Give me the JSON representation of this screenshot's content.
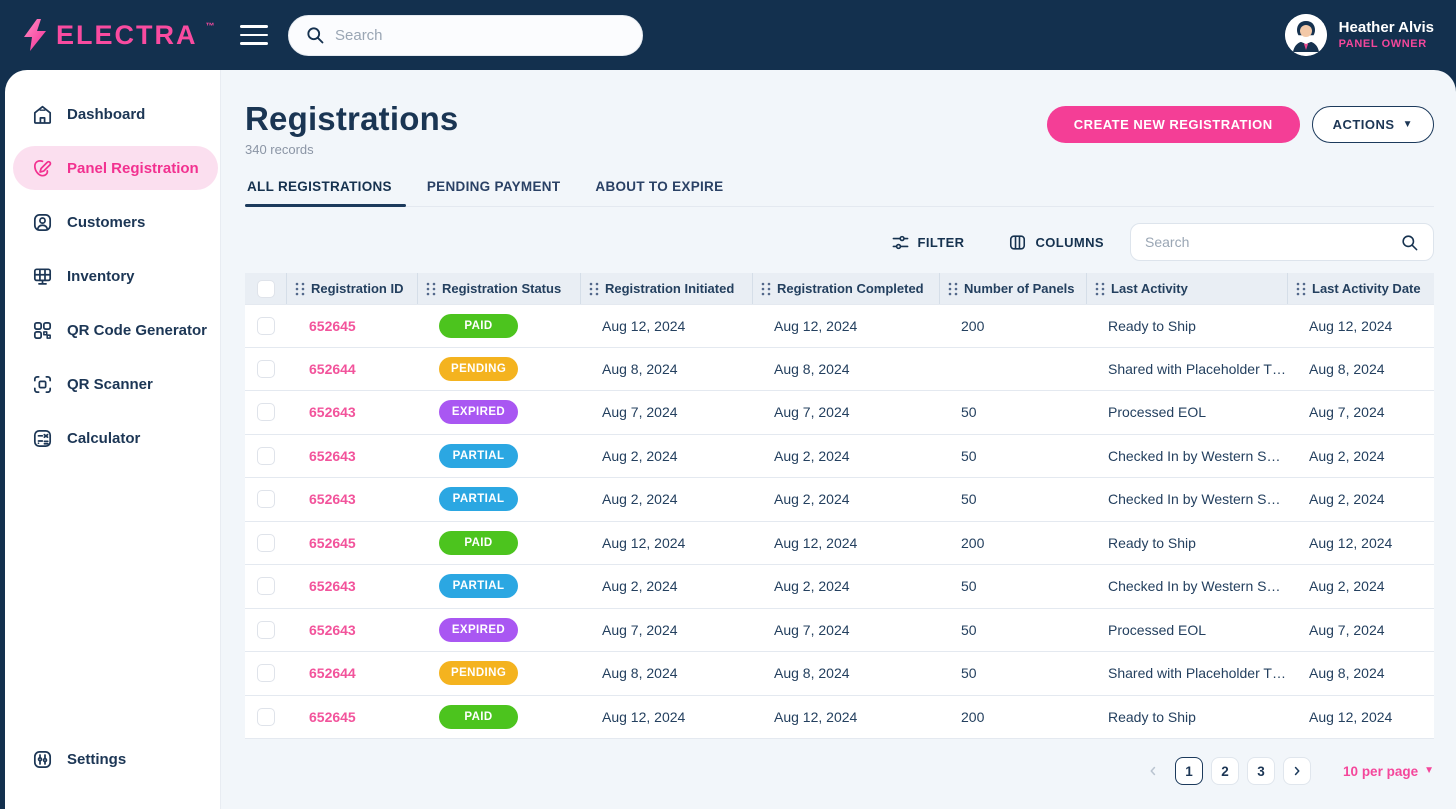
{
  "brand": {
    "name": "ELECTRA",
    "trademark": "™"
  },
  "topbar": {
    "search_placeholder": "Search",
    "user_name": "Heather Alvis",
    "user_role": "PANEL OWNER"
  },
  "sidebar": {
    "items": [
      {
        "label": "Dashboard",
        "icon": "home",
        "active": false
      },
      {
        "label": "Panel Registration",
        "icon": "edit",
        "active": true
      },
      {
        "label": "Customers",
        "icon": "customer",
        "active": false
      },
      {
        "label": "Inventory",
        "icon": "panel",
        "active": false
      },
      {
        "label": "QR Code Generator",
        "icon": "qr-code",
        "active": false
      },
      {
        "label": "QR Scanner",
        "icon": "qr-scan",
        "active": false
      },
      {
        "label": "Calculator",
        "icon": "calculator",
        "active": false
      }
    ],
    "bottom_item": {
      "label": "Settings",
      "icon": "settings",
      "active": false
    }
  },
  "page": {
    "title": "Registrations",
    "record_count": "340 records",
    "create_button": "CREATE NEW REGISTRATION",
    "actions_button": "ACTIONS"
  },
  "tabs": [
    {
      "label": "ALL REGISTRATIONS",
      "active": true
    },
    {
      "label": "PENDING PAYMENT",
      "active": false
    },
    {
      "label": "ABOUT TO EXPIRE",
      "active": false
    }
  ],
  "toolbar": {
    "filter_label": "FILTER",
    "columns_label": "COLUMNS",
    "search_placeholder": "Search"
  },
  "table": {
    "columns": [
      "Registration ID",
      "Registration Status",
      "Registration Initiated",
      "Registration Completed",
      "Number of Panels",
      "Last Activity",
      "Last Activity Date"
    ],
    "status_colors": {
      "PAID": "#4CC41E",
      "PENDING": "#F4B31F",
      "EXPIRED": "#A957F2",
      "PARTIAL": "#2BA7E2"
    },
    "rows": [
      {
        "id": "652645",
        "status": "PAID",
        "initiated": "Aug 12, 2024",
        "completed": "Aug 12, 2024",
        "panels": "200",
        "last_activity": "Ready to Ship",
        "last_activity_date": "Aug 12, 2024"
      },
      {
        "id": "652644",
        "status": "PENDING",
        "initiated": "Aug 8, 2024",
        "completed": "Aug 8, 2024",
        "panels": "",
        "last_activity": "Shared with Placeholder T…",
        "last_activity_date": "Aug 8, 2024"
      },
      {
        "id": "652643",
        "status": "EXPIRED",
        "initiated": "Aug 7, 2024",
        "completed": "Aug 7, 2024",
        "panels": "50",
        "last_activity": "Processed EOL",
        "last_activity_date": "Aug 7, 2024"
      },
      {
        "id": "652643",
        "status": "PARTIAL",
        "initiated": "Aug 2, 2024",
        "completed": "Aug 2, 2024",
        "panels": "50",
        "last_activity": "Checked In by Western S…",
        "last_activity_date": "Aug 2, 2024"
      },
      {
        "id": "652643",
        "status": "PARTIAL",
        "initiated": "Aug 2, 2024",
        "completed": "Aug 2, 2024",
        "panels": "50",
        "last_activity": "Checked In by Western S…",
        "last_activity_date": "Aug 2, 2024"
      },
      {
        "id": "652645",
        "status": "PAID",
        "initiated": "Aug 12, 2024",
        "completed": "Aug 12, 2024",
        "panels": "200",
        "last_activity": "Ready to Ship",
        "last_activity_date": "Aug 12, 2024"
      },
      {
        "id": "652643",
        "status": "PARTIAL",
        "initiated": "Aug 2, 2024",
        "completed": "Aug 2, 2024",
        "panels": "50",
        "last_activity": "Checked In by Western S…",
        "last_activity_date": "Aug 2, 2024"
      },
      {
        "id": "652643",
        "status": "EXPIRED",
        "initiated": "Aug 7, 2024",
        "completed": "Aug 7, 2024",
        "panels": "50",
        "last_activity": "Processed EOL",
        "last_activity_date": "Aug 7, 2024"
      },
      {
        "id": "652644",
        "status": "PENDING",
        "initiated": "Aug 8, 2024",
        "completed": "Aug 8, 2024",
        "panels": "50",
        "last_activity": "Shared with Placeholder T…",
        "last_activity_date": "Aug 8, 2024"
      },
      {
        "id": "652645",
        "status": "PAID",
        "initiated": "Aug 12, 2024",
        "completed": "Aug 12, 2024",
        "panels": "200",
        "last_activity": "Ready to Ship",
        "last_activity_date": "Aug 12, 2024"
      }
    ]
  },
  "pagination": {
    "pages": [
      "1",
      "2",
      "3"
    ],
    "current_page": "1",
    "per_page_label": "10 per page"
  },
  "colors": {
    "accent_pink": "#F43E96",
    "navy": "#13304E",
    "header_bg": "#E9EEF4"
  }
}
